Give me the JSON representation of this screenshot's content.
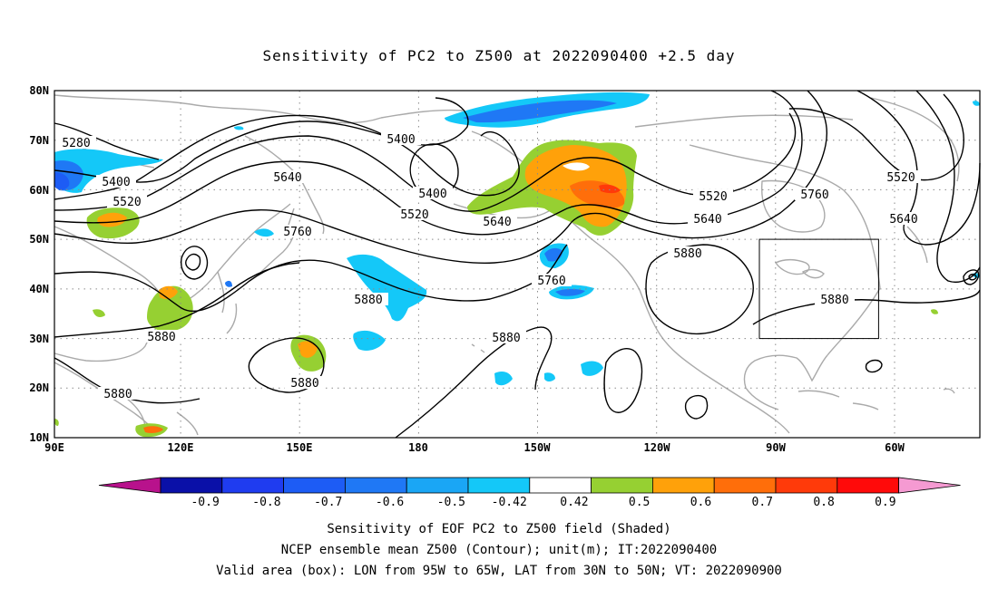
{
  "map": {
    "title": "Sensitivity of PC2 to Z500 at 2022090400 +2.5 day",
    "lat_labels": [
      "80N",
      "70N",
      "60N",
      "50N",
      "40N",
      "30N",
      "20N",
      "10N"
    ],
    "lon_labels": [
      "90E",
      "120E",
      "150E",
      "180",
      "150W",
      "120W",
      "90W",
      "60W"
    ],
    "lon_range": [
      "90E",
      "310E"
    ],
    "lat_range": [
      "10N",
      "80N"
    ],
    "contour_labels": [
      "5280",
      "5400",
      "5400",
      "5400",
      "5520",
      "5520",
      "5520",
      "5520",
      "5640",
      "5640",
      "5640",
      "5640",
      "5760",
      "5760",
      "5760",
      "5880",
      "5880",
      "5880",
      "5880",
      "5880",
      "5880",
      "5880"
    ],
    "valid_box": {
      "lon_west": "95W",
      "lon_east": "65W",
      "lat_south": "30N",
      "lat_north": "50N"
    }
  },
  "colorbar": {
    "labels": [
      "-0.9",
      "-0.8",
      "-0.7",
      "-0.6",
      "-0.5",
      "-0.42",
      "0.42",
      "0.5",
      "0.6",
      "0.7",
      "0.8",
      "0.9"
    ],
    "colors": [
      "#b8128c",
      "#0a10a8",
      "#1f3cf0",
      "#1d5cf5",
      "#1f78f5",
      "#1aa6f5",
      "#14c8f8",
      "#ffffff",
      "#96d032",
      "#ffa10a",
      "#ff6e0a",
      "#ff3a0a",
      "#ff0a0a",
      "#f59ad2"
    ]
  },
  "captions": [
    "Sensitivity of EOF PC2 to Z500 field (Shaded)",
    "NCEP ensemble mean Z500 (Contour); unit(m); IT:2022090400",
    "Valid area (box): LON from 95W to 65W, LAT from 30N to 50N; VT: 2022090900"
  ]
}
